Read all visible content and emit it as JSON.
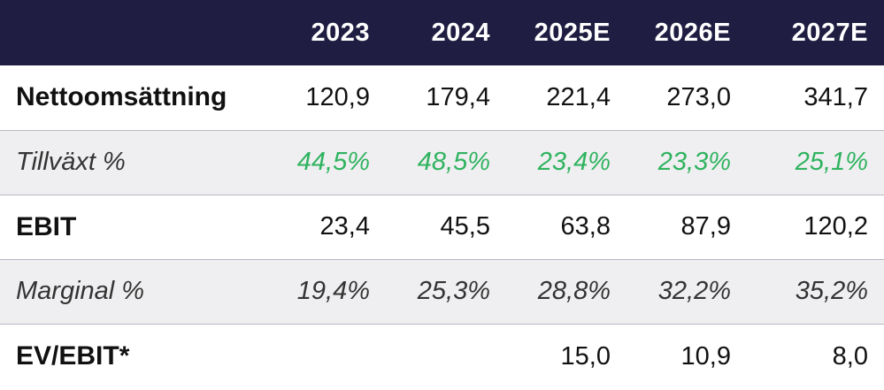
{
  "header": {
    "label": "",
    "years": [
      "2023",
      "2024",
      "2025E",
      "2026E",
      "2027E"
    ]
  },
  "rows": [
    {
      "label": "Nettoomsättning",
      "values": [
        "120,9",
        "179,4",
        "221,4",
        "273,0",
        "341,7"
      ]
    },
    {
      "label": "Tillväxt %",
      "values": [
        "44,5%",
        "48,5%",
        "23,4%",
        "23,3%",
        "25,1%"
      ],
      "value_color": "#2fb35f"
    },
    {
      "label": "EBIT",
      "values": [
        "23,4",
        "45,5",
        "63,8",
        "87,9",
        "120,2"
      ]
    },
    {
      "label": "Marginal %",
      "values": [
        "19,4%",
        "25,3%",
        "28,8%",
        "32,2%",
        "35,2%"
      ]
    },
    {
      "label": "EV/EBIT*",
      "values": [
        "",
        "",
        "15,0",
        "10,9",
        "8,0"
      ]
    }
  ],
  "colors": {
    "header_bg": "#1f1d42",
    "shade_bg": "#efeff1",
    "growth_green": "#2fb35f"
  }
}
